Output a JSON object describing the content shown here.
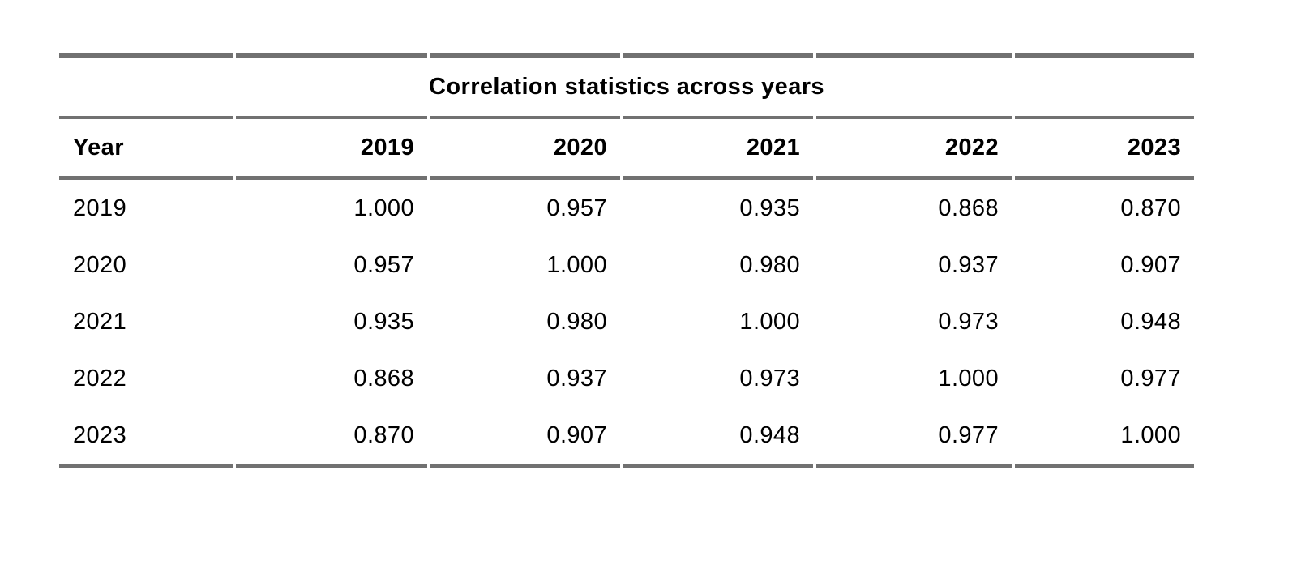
{
  "page": {
    "background": "#ffffff",
    "rule_color": "#717171",
    "text_color": "#000000"
  },
  "table": {
    "title": "Correlation statistics across years",
    "columns": [
      "Year",
      "2019",
      "2020",
      "2021",
      "2022",
      "2023"
    ],
    "rows": [
      {
        "label": "2019",
        "values": [
          "1.000",
          "0.957",
          "0.935",
          "0.868",
          "0.870"
        ]
      },
      {
        "label": "2020",
        "values": [
          "0.957",
          "1.000",
          "0.980",
          "0.937",
          "0.907"
        ]
      },
      {
        "label": "2021",
        "values": [
          "0.935",
          "0.980",
          "1.000",
          "0.973",
          "0.948"
        ]
      },
      {
        "label": "2022",
        "values": [
          "0.868",
          "0.937",
          "0.973",
          "1.000",
          "0.977"
        ]
      },
      {
        "label": "2023",
        "values": [
          "0.870",
          "0.907",
          "0.948",
          "0.977",
          "1.000"
        ]
      }
    ]
  },
  "chart_data": {
    "type": "table",
    "title": "Correlation statistics across years",
    "columns": [
      "Year",
      "2019",
      "2020",
      "2021",
      "2022",
      "2023"
    ],
    "rows": [
      [
        "2019",
        "1.000",
        "0.957",
        "0.935",
        "0.868",
        "0.870"
      ],
      [
        "2020",
        "0.957",
        "1.000",
        "0.980",
        "0.937",
        "0.907"
      ],
      [
        "2021",
        "0.935",
        "0.980",
        "1.000",
        "0.973",
        "0.948"
      ],
      [
        "2022",
        "0.868",
        "0.937",
        "0.973",
        "1.000",
        "0.977"
      ],
      [
        "2023",
        "0.870",
        "0.907",
        "0.948",
        "0.977",
        "1.000"
      ]
    ]
  }
}
